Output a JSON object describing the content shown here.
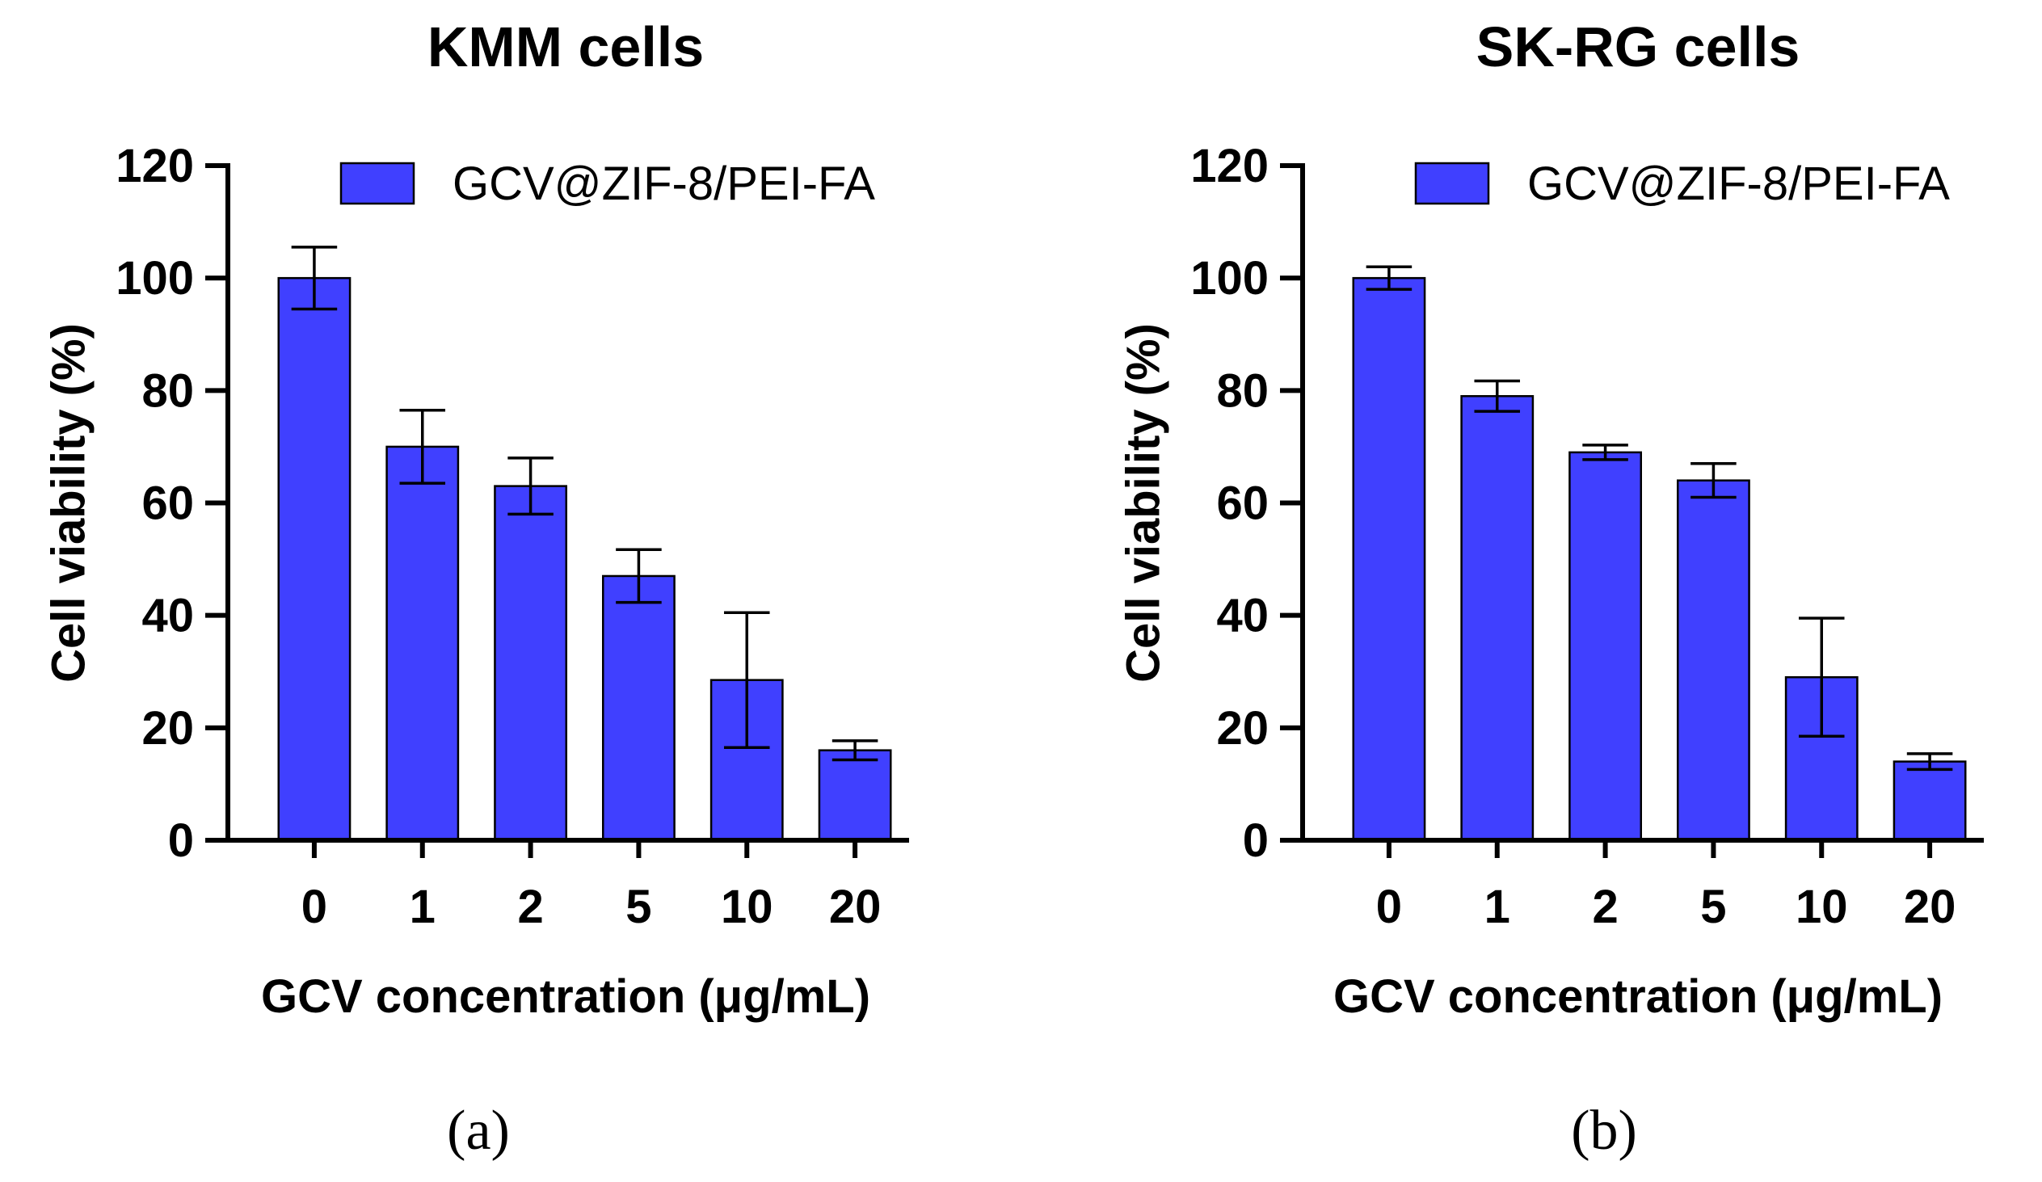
{
  "chart_data": [
    {
      "type": "bar",
      "title": "KMM cells",
      "xlabel": "GCV concentration (μg/mL)",
      "ylabel": "Cell viability (%)",
      "categories": [
        "0",
        "1",
        "2",
        "5",
        "10",
        "20"
      ],
      "series": [
        {
          "name": "GCV@ZIF-8/PEI-FA",
          "values": [
            100,
            70,
            63,
            47,
            28.5,
            16
          ],
          "errors": [
            5.5,
            6.5,
            5,
            4.7,
            12,
            1.7
          ],
          "color": "#4040ff"
        }
      ],
      "ylim": [
        0,
        120
      ],
      "yticks": [
        0,
        20,
        40,
        60,
        80,
        100,
        120
      ],
      "legend_position": "top-right",
      "panel_label": "(a)"
    },
    {
      "type": "bar",
      "title": "SK-RG cells",
      "xlabel": "GCV concentration (μg/mL)",
      "ylabel": "Cell viability (%)",
      "categories": [
        "0",
        "1",
        "2",
        "5",
        "10",
        "20"
      ],
      "series": [
        {
          "name": "GCV@ZIF-8/PEI-FA",
          "values": [
            100,
            79,
            69,
            64,
            29,
            14
          ],
          "errors": [
            2,
            2.7,
            1.3,
            3,
            10.5,
            1.4
          ],
          "color": "#4040ff"
        }
      ],
      "ylim": [
        0,
        120
      ],
      "yticks": [
        0,
        20,
        40,
        60,
        80,
        100,
        120
      ],
      "legend_position": "top-right",
      "panel_label": "(b)"
    }
  ]
}
